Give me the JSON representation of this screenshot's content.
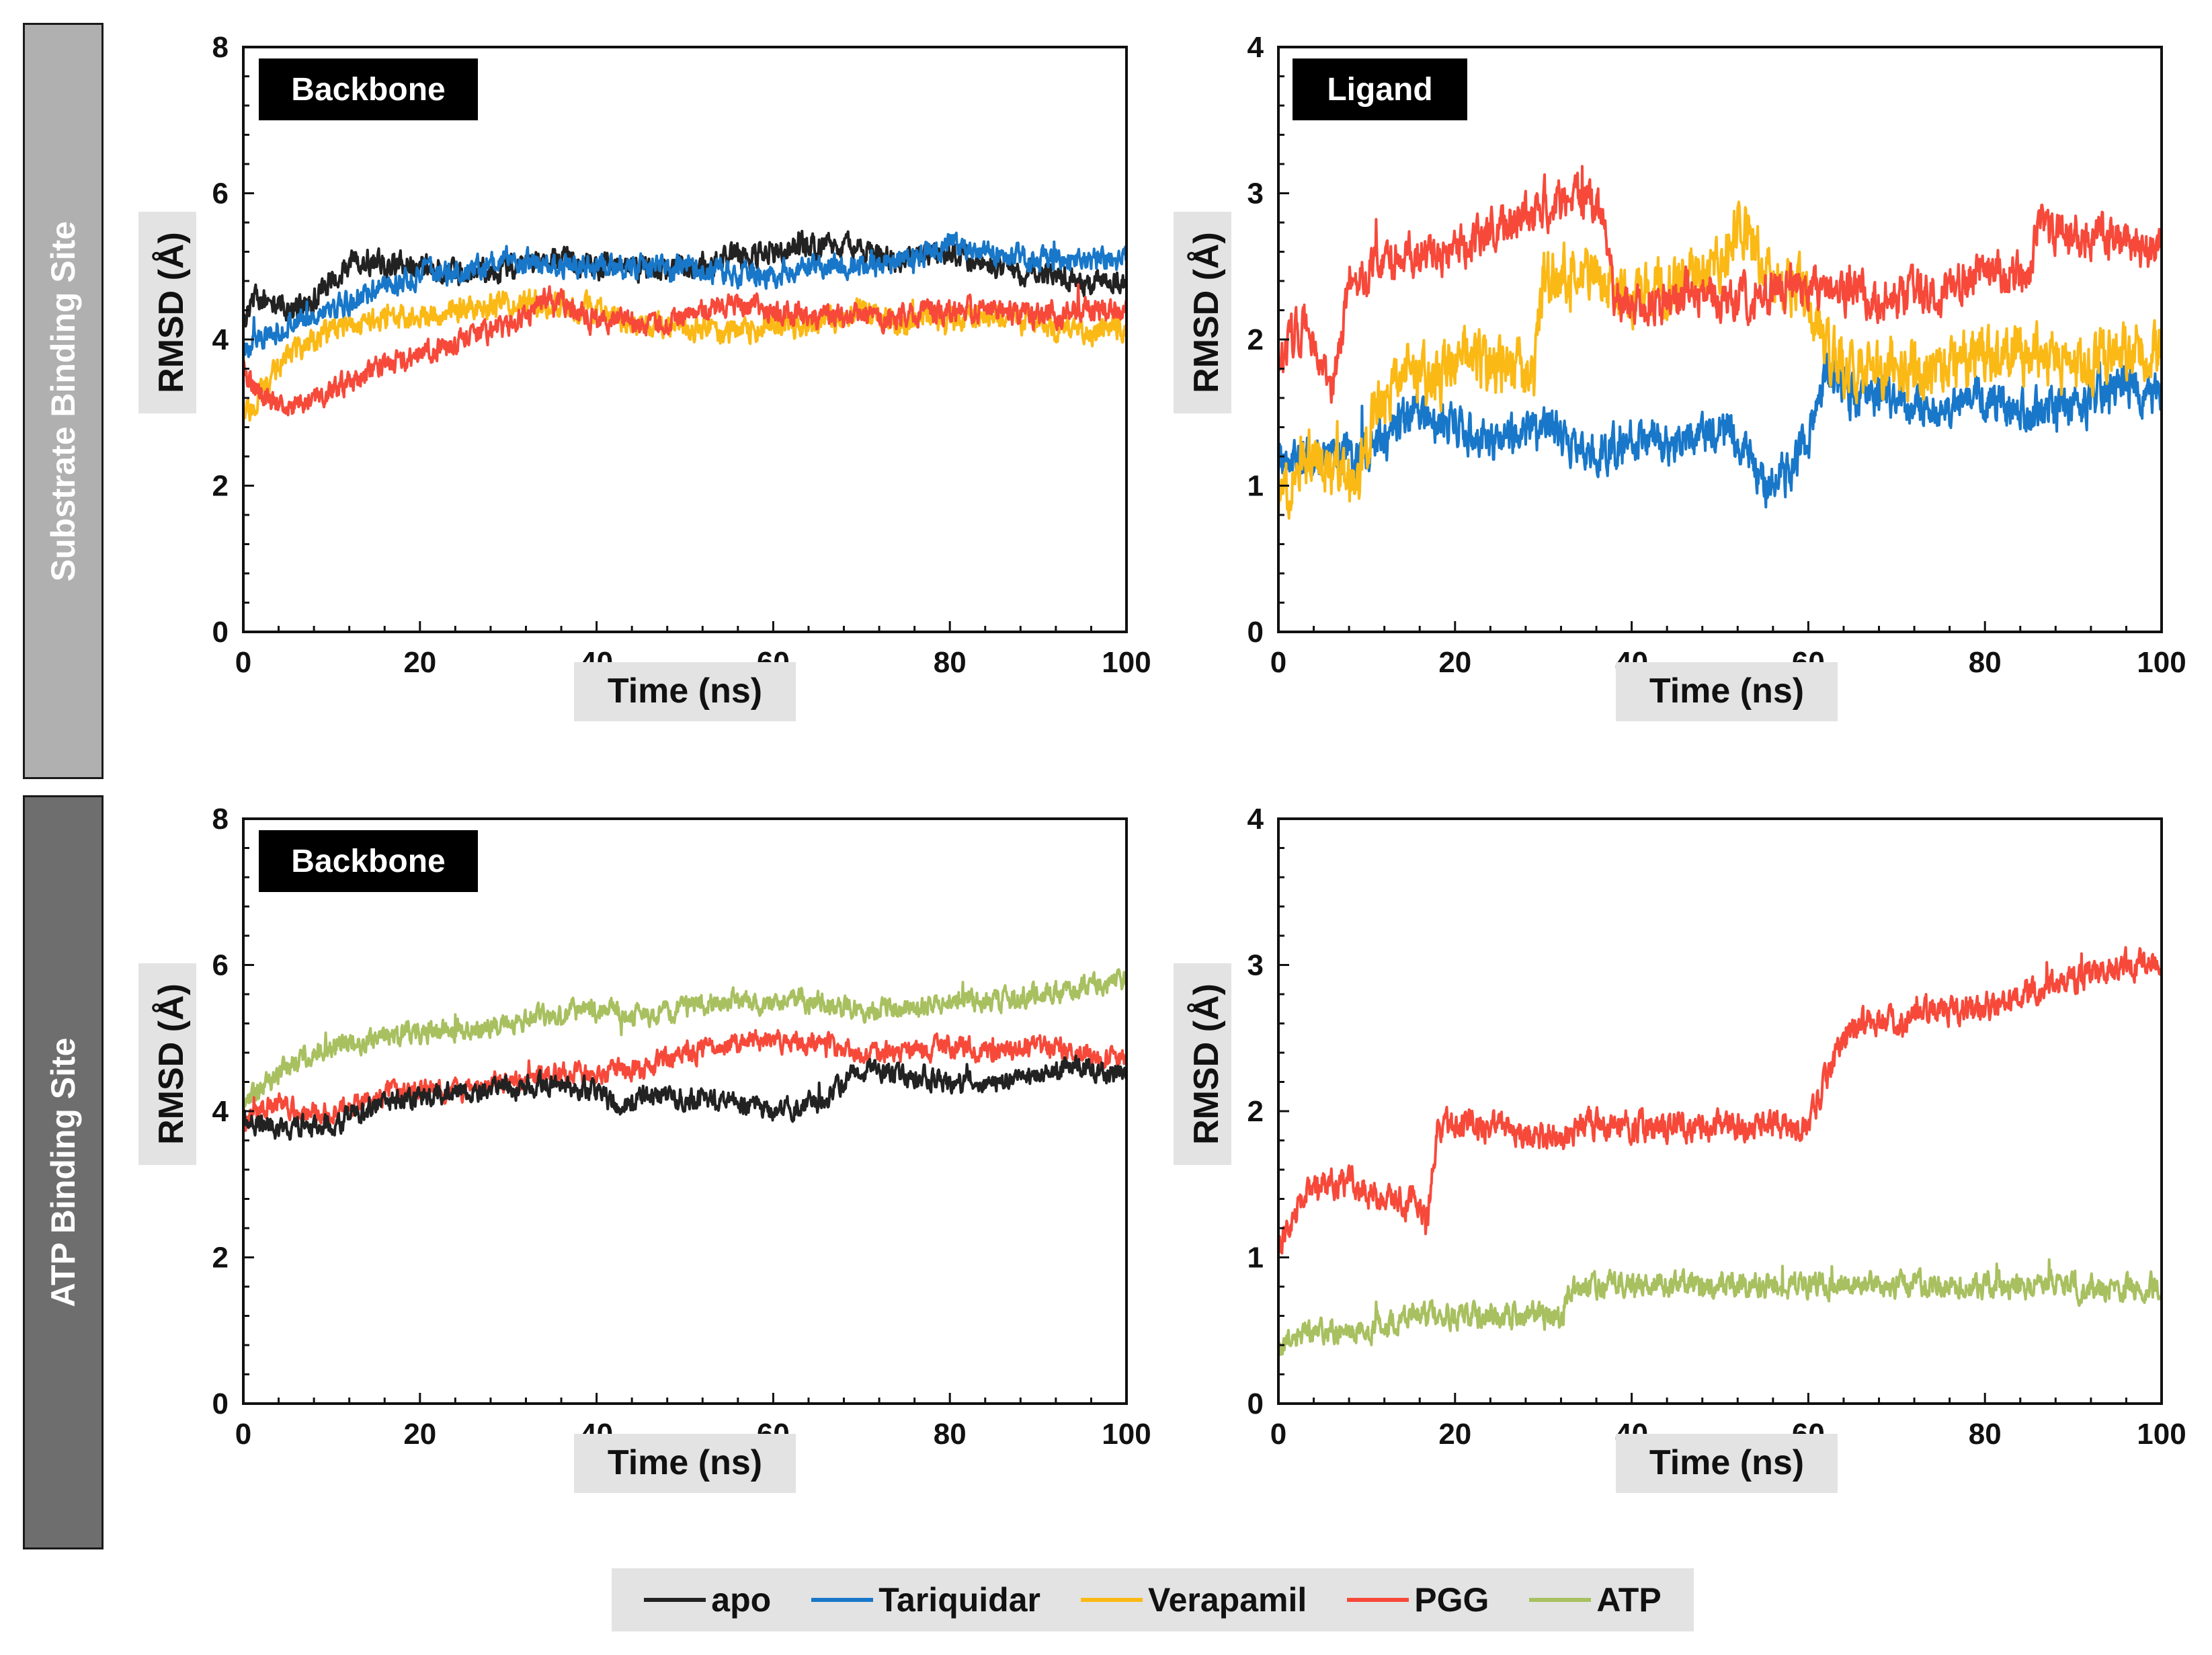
{
  "row_labels": {
    "top": "Substrate Binding Site",
    "bottom": "ATP Binding Site"
  },
  "legend": [
    {
      "name": "apo",
      "color": "#222222"
    },
    {
      "name": "Tariquidar",
      "color": "#1877c9"
    },
    {
      "name": "Verapamil",
      "color": "#fbb916"
    },
    {
      "name": "PGG",
      "color": "#f7493a"
    },
    {
      "name": "ATP",
      "color": "#a8c060"
    }
  ],
  "chart_data": [
    {
      "id": "p1",
      "type": "line",
      "title": "Backbone",
      "xlabel": "Time (ns)",
      "ylabel": "RMSD (Å)",
      "xlim": [
        0,
        100
      ],
      "ylim": [
        0,
        8
      ],
      "xticks": [
        0,
        20,
        40,
        60,
        80,
        100
      ],
      "yticks": [
        0,
        2,
        4,
        6,
        8
      ],
      "series": [
        {
          "name": "apo",
          "color": "#222222",
          "noise": 0.14,
          "x": [
            0,
            1,
            3,
            6,
            10,
            13,
            17,
            20,
            25,
            30,
            35,
            40,
            45,
            50,
            55,
            60,
            65,
            70,
            75,
            80,
            85,
            90,
            95,
            100
          ],
          "y": [
            4.2,
            4.6,
            4.5,
            4.4,
            4.8,
            5.1,
            5.0,
            5.0,
            4.9,
            5.0,
            5.1,
            5.0,
            5.0,
            5.0,
            5.1,
            5.2,
            5.3,
            5.2,
            5.1,
            5.2,
            5.0,
            4.9,
            4.8,
            4.8
          ]
        },
        {
          "name": "Tariquidar",
          "color": "#1877c9",
          "noise": 0.13,
          "x": [
            0,
            2,
            5,
            10,
            15,
            20,
            25,
            30,
            35,
            40,
            45,
            50,
            55,
            60,
            65,
            70,
            75,
            80,
            85,
            90,
            95,
            100
          ],
          "y": [
            3.9,
            4.0,
            4.2,
            4.4,
            4.7,
            4.9,
            4.9,
            5.1,
            5.0,
            5.0,
            5.0,
            5.0,
            4.9,
            4.9,
            5.0,
            5.0,
            5.1,
            5.3,
            5.2,
            5.1,
            5.1,
            5.1
          ]
        },
        {
          "name": "Verapamil",
          "color": "#fbb916",
          "noise": 0.14,
          "x": [
            0,
            2,
            5,
            10,
            15,
            20,
            25,
            30,
            35,
            40,
            45,
            50,
            55,
            60,
            65,
            70,
            75,
            80,
            85,
            90,
            95,
            100
          ],
          "y": [
            2.9,
            3.3,
            3.8,
            4.1,
            4.3,
            4.3,
            4.4,
            4.5,
            4.5,
            4.4,
            4.2,
            4.2,
            4.1,
            4.2,
            4.2,
            4.4,
            4.2,
            4.3,
            4.3,
            4.2,
            4.1,
            4.2
          ]
        },
        {
          "name": "PGG",
          "color": "#f7493a",
          "noise": 0.13,
          "x": [
            0,
            2,
            5,
            10,
            15,
            20,
            25,
            30,
            35,
            40,
            45,
            50,
            55,
            60,
            65,
            70,
            75,
            80,
            85,
            90,
            95,
            100
          ],
          "y": [
            3.6,
            3.2,
            3.1,
            3.3,
            3.6,
            3.8,
            4.0,
            4.2,
            4.6,
            4.3,
            4.2,
            4.3,
            4.5,
            4.4,
            4.3,
            4.3,
            4.3,
            4.4,
            4.4,
            4.3,
            4.4,
            4.4
          ]
        }
      ]
    },
    {
      "id": "p2",
      "type": "line",
      "title": "Ligand",
      "xlabel": "Time (ns)",
      "ylabel": "RMSD (Å)",
      "xlim": [
        0,
        100
      ],
      "ylim": [
        0,
        4
      ],
      "xticks": [
        0,
        20,
        40,
        60,
        80,
        100
      ],
      "yticks": [
        0,
        1,
        2,
        3,
        4
      ],
      "series": [
        {
          "name": "Tariquidar",
          "color": "#1877c9",
          "noise": 0.12,
          "x": [
            0,
            5,
            10,
            12,
            15,
            20,
            25,
            30,
            35,
            40,
            45,
            50,
            53,
            55,
            58,
            60,
            62,
            65,
            70,
            75,
            80,
            85,
            90,
            95,
            100
          ],
          "y": [
            1.2,
            1.2,
            1.2,
            1.3,
            1.5,
            1.4,
            1.3,
            1.4,
            1.2,
            1.3,
            1.3,
            1.4,
            1.3,
            1.0,
            1.1,
            1.3,
            1.8,
            1.6,
            1.6,
            1.5,
            1.6,
            1.5,
            1.5,
            1.7,
            1.6
          ]
        },
        {
          "name": "Verapamil",
          "color": "#fbb916",
          "noise": 0.16,
          "x": [
            0,
            3,
            6,
            9,
            11,
            15,
            18,
            20,
            25,
            29,
            30,
            35,
            40,
            45,
            50,
            52,
            55,
            60,
            62,
            65,
            70,
            75,
            80,
            85,
            90,
            95,
            100
          ],
          "y": [
            0.9,
            1.2,
            1.1,
            1.0,
            1.5,
            1.8,
            1.7,
            1.9,
            1.8,
            1.8,
            2.4,
            2.5,
            2.3,
            2.4,
            2.5,
            2.8,
            2.5,
            2.3,
            1.9,
            1.8,
            1.8,
            1.8,
            1.9,
            1.9,
            1.8,
            1.9,
            1.9
          ]
        },
        {
          "name": "PGG",
          "color": "#f7493a",
          "noise": 0.12,
          "x": [
            0,
            3,
            6,
            8,
            12,
            15,
            20,
            25,
            30,
            35,
            37,
            38,
            40,
            45,
            50,
            55,
            60,
            65,
            70,
            75,
            80,
            85,
            86,
            90,
            95,
            100
          ],
          "y": [
            1.9,
            2.1,
            1.6,
            2.4,
            2.5,
            2.6,
            2.6,
            2.8,
            2.9,
            3.0,
            2.8,
            2.3,
            2.2,
            2.3,
            2.3,
            2.3,
            2.4,
            2.3,
            2.3,
            2.3,
            2.5,
            2.4,
            2.8,
            2.7,
            2.7,
            2.6
          ]
        }
      ]
    },
    {
      "id": "p3",
      "type": "line",
      "title": "Backbone",
      "xlabel": "Time (ns)",
      "ylabel": "RMSD (Å)",
      "xlim": [
        0,
        100
      ],
      "ylim": [
        0,
        8
      ],
      "xticks": [
        0,
        20,
        40,
        60,
        80,
        100
      ],
      "yticks": [
        0,
        2,
        4,
        6,
        8
      ],
      "series": [
        {
          "name": "ATP",
          "color": "#a8c060",
          "noise": 0.12,
          "x": [
            0,
            3,
            6,
            10,
            15,
            20,
            25,
            30,
            35,
            40,
            45,
            50,
            55,
            60,
            65,
            70,
            75,
            80,
            85,
            90,
            95,
            100
          ],
          "y": [
            4.1,
            4.4,
            4.7,
            4.9,
            5.0,
            5.1,
            5.1,
            5.2,
            5.3,
            5.4,
            5.3,
            5.4,
            5.5,
            5.5,
            5.5,
            5.4,
            5.4,
            5.5,
            5.5,
            5.6,
            5.7,
            5.8
          ]
        },
        {
          "name": "PGG",
          "color": "#f7493a",
          "noise": 0.12,
          "x": [
            0,
            3,
            6,
            10,
            15,
            20,
            25,
            30,
            35,
            40,
            45,
            50,
            55,
            60,
            65,
            70,
            75,
            80,
            85,
            90,
            95,
            100
          ],
          "y": [
            3.8,
            4.1,
            4.0,
            4.0,
            4.2,
            4.3,
            4.3,
            4.4,
            4.5,
            4.5,
            4.6,
            4.8,
            4.9,
            5.0,
            4.9,
            4.8,
            4.8,
            4.9,
            4.8,
            4.9,
            4.8,
            4.7
          ]
        },
        {
          "name": "apo",
          "color": "#222222",
          "noise": 0.12,
          "x": [
            0,
            3,
            6,
            10,
            15,
            20,
            25,
            30,
            35,
            40,
            43,
            45,
            50,
            55,
            60,
            65,
            70,
            75,
            80,
            85,
            90,
            95,
            100
          ],
          "y": [
            3.9,
            3.8,
            3.8,
            3.8,
            4.1,
            4.2,
            4.3,
            4.3,
            4.4,
            4.3,
            4.0,
            4.2,
            4.2,
            4.1,
            4.0,
            4.1,
            4.6,
            4.5,
            4.4,
            4.4,
            4.5,
            4.6,
            4.5
          ]
        }
      ]
    },
    {
      "id": "p4",
      "type": "line",
      "title": "",
      "xlabel": "Time (ns)",
      "ylabel": "RMSD (Å)",
      "xlim": [
        0,
        100
      ],
      "ylim": [
        0,
        4
      ],
      "xticks": [
        0,
        20,
        40,
        60,
        80,
        100
      ],
      "yticks": [
        0,
        1,
        2,
        3,
        4
      ],
      "series": [
        {
          "name": "PGG",
          "color": "#f7493a",
          "noise": 0.08,
          "x": [
            0,
            1,
            3,
            5,
            9,
            11,
            14,
            17,
            18,
            20,
            25,
            30,
            35,
            40,
            45,
            50,
            55,
            58,
            60,
            62,
            64,
            66,
            70,
            75,
            80,
            85,
            90,
            95,
            100
          ],
          "y": [
            1.0,
            1.2,
            1.4,
            1.5,
            1.5,
            1.4,
            1.4,
            1.3,
            1.9,
            1.9,
            1.9,
            1.8,
            1.9,
            1.9,
            1.9,
            1.9,
            1.9,
            1.9,
            1.9,
            2.2,
            2.5,
            2.6,
            2.6,
            2.7,
            2.7,
            2.8,
            2.9,
            3.0,
            3.0
          ]
        },
        {
          "name": "ATP",
          "color": "#a8c060",
          "noise": 0.07,
          "x": [
            0,
            5,
            10,
            15,
            20,
            25,
            30,
            32,
            33,
            40,
            45,
            50,
            55,
            60,
            65,
            70,
            75,
            80,
            85,
            90,
            95,
            100
          ],
          "y": [
            0.4,
            0.5,
            0.5,
            0.6,
            0.6,
            0.6,
            0.6,
            0.6,
            0.8,
            0.8,
            0.8,
            0.8,
            0.8,
            0.8,
            0.8,
            0.8,
            0.8,
            0.8,
            0.8,
            0.8,
            0.8,
            0.8
          ]
        }
      ]
    }
  ]
}
